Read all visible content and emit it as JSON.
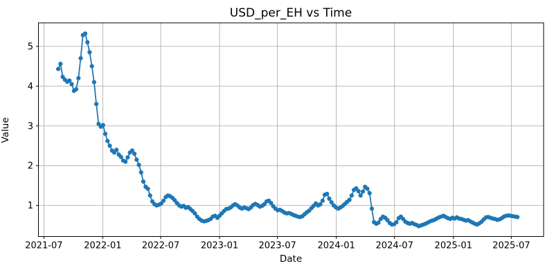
{
  "chart_data": {
    "type": "line",
    "title": "USD_per_EH vs Time",
    "xlabel": "Date",
    "ylabel": "Value",
    "legend": null,
    "grid": true,
    "line_color": "#1f77b4",
    "grid_color": "#b0b0b0",
    "marker": "circle",
    "xlim": [
      "2021-06-14",
      "2025-10-10"
    ],
    "ylim": [
      0.22,
      5.59
    ],
    "x_ticks": [
      {
        "date": "2021-07-01",
        "label": "2021-07"
      },
      {
        "date": "2022-01-01",
        "label": "2022-01"
      },
      {
        "date": "2022-07-01",
        "label": "2022-07"
      },
      {
        "date": "2023-01-01",
        "label": "2023-01"
      },
      {
        "date": "2023-07-01",
        "label": "2023-07"
      },
      {
        "date": "2024-01-01",
        "label": "2024-01"
      },
      {
        "date": "2024-07-01",
        "label": "2024-07"
      },
      {
        "date": "2025-01-01",
        "label": "2025-01"
      },
      {
        "date": "2025-07-01",
        "label": "2025-07"
      }
    ],
    "y_ticks": [
      1,
      2,
      3,
      4,
      5
    ],
    "series": [
      {
        "name": "USD_per_EH",
        "points": [
          [
            "2021-08-15",
            4.43
          ],
          [
            "2021-08-22",
            4.56
          ],
          [
            "2021-08-29",
            4.23
          ],
          [
            "2021-09-05",
            4.16
          ],
          [
            "2021-09-12",
            4.11
          ],
          [
            "2021-09-19",
            4.14
          ],
          [
            "2021-09-26",
            4.05
          ],
          [
            "2021-10-03",
            3.88
          ],
          [
            "2021-10-10",
            3.92
          ],
          [
            "2021-10-17",
            4.2
          ],
          [
            "2021-10-24",
            4.7
          ],
          [
            "2021-10-31",
            5.28
          ],
          [
            "2021-11-07",
            5.32
          ],
          [
            "2021-11-14",
            5.1
          ],
          [
            "2021-11-21",
            4.85
          ],
          [
            "2021-11-28",
            4.5
          ],
          [
            "2021-12-05",
            4.1
          ],
          [
            "2021-12-12",
            3.55
          ],
          [
            "2021-12-19",
            3.05
          ],
          [
            "2021-12-26",
            2.98
          ],
          [
            "2022-01-02",
            3.02
          ],
          [
            "2022-01-09",
            2.8
          ],
          [
            "2022-01-16",
            2.62
          ],
          [
            "2022-01-23",
            2.5
          ],
          [
            "2022-01-30",
            2.38
          ],
          [
            "2022-02-06",
            2.33
          ],
          [
            "2022-02-13",
            2.4
          ],
          [
            "2022-02-20",
            2.28
          ],
          [
            "2022-02-27",
            2.22
          ],
          [
            "2022-03-06",
            2.13
          ],
          [
            "2022-03-13",
            2.1
          ],
          [
            "2022-03-20",
            2.21
          ],
          [
            "2022-03-27",
            2.33
          ],
          [
            "2022-04-03",
            2.38
          ],
          [
            "2022-04-10",
            2.3
          ],
          [
            "2022-04-17",
            2.15
          ],
          [
            "2022-04-24",
            2.02
          ],
          [
            "2022-05-01",
            1.83
          ],
          [
            "2022-05-08",
            1.6
          ],
          [
            "2022-05-15",
            1.47
          ],
          [
            "2022-05-22",
            1.42
          ],
          [
            "2022-05-29",
            1.25
          ],
          [
            "2022-06-05",
            1.1
          ],
          [
            "2022-06-12",
            1.03
          ],
          [
            "2022-06-19",
            1.0
          ],
          [
            "2022-06-26",
            1.02
          ],
          [
            "2022-07-03",
            1.05
          ],
          [
            "2022-07-10",
            1.12
          ],
          [
            "2022-07-17",
            1.21
          ],
          [
            "2022-07-24",
            1.25
          ],
          [
            "2022-07-31",
            1.23
          ],
          [
            "2022-08-07",
            1.19
          ],
          [
            "2022-08-14",
            1.13
          ],
          [
            "2022-08-21",
            1.06
          ],
          [
            "2022-08-28",
            1.0
          ],
          [
            "2022-09-04",
            0.97
          ],
          [
            "2022-09-11",
            0.99
          ],
          [
            "2022-09-18",
            0.94
          ],
          [
            "2022-09-25",
            0.96
          ],
          [
            "2022-10-02",
            0.91
          ],
          [
            "2022-10-09",
            0.86
          ],
          [
            "2022-10-16",
            0.8
          ],
          [
            "2022-10-23",
            0.72
          ],
          [
            "2022-10-30",
            0.66
          ],
          [
            "2022-11-06",
            0.62
          ],
          [
            "2022-11-13",
            0.6
          ],
          [
            "2022-11-20",
            0.61
          ],
          [
            "2022-11-27",
            0.63
          ],
          [
            "2022-12-04",
            0.66
          ],
          [
            "2022-12-11",
            0.72
          ],
          [
            "2022-12-18",
            0.74
          ],
          [
            "2022-12-25",
            0.69
          ],
          [
            "2023-01-01",
            0.74
          ],
          [
            "2023-01-08",
            0.8
          ],
          [
            "2023-01-15",
            0.86
          ],
          [
            "2023-01-22",
            0.91
          ],
          [
            "2023-01-29",
            0.92
          ],
          [
            "2023-02-05",
            0.95
          ],
          [
            "2023-02-12",
            1.0
          ],
          [
            "2023-02-19",
            1.03
          ],
          [
            "2023-02-26",
            1.0
          ],
          [
            "2023-03-05",
            0.95
          ],
          [
            "2023-03-12",
            0.92
          ],
          [
            "2023-03-19",
            0.95
          ],
          [
            "2023-03-26",
            0.93
          ],
          [
            "2023-04-02",
            0.91
          ],
          [
            "2023-04-09",
            0.95
          ],
          [
            "2023-04-16",
            1.01
          ],
          [
            "2023-04-23",
            1.04
          ],
          [
            "2023-04-30",
            1.01
          ],
          [
            "2023-05-07",
            0.97
          ],
          [
            "2023-05-14",
            0.99
          ],
          [
            "2023-05-21",
            1.03
          ],
          [
            "2023-05-28",
            1.1
          ],
          [
            "2023-06-04",
            1.12
          ],
          [
            "2023-06-11",
            1.06
          ],
          [
            "2023-06-18",
            0.98
          ],
          [
            "2023-06-25",
            0.92
          ],
          [
            "2023-07-02",
            0.88
          ],
          [
            "2023-07-09",
            0.89
          ],
          [
            "2023-07-16",
            0.86
          ],
          [
            "2023-07-23",
            0.82
          ],
          [
            "2023-07-30",
            0.8
          ],
          [
            "2023-08-06",
            0.81
          ],
          [
            "2023-08-13",
            0.79
          ],
          [
            "2023-08-20",
            0.76
          ],
          [
            "2023-08-27",
            0.74
          ],
          [
            "2023-09-03",
            0.72
          ],
          [
            "2023-09-10",
            0.71
          ],
          [
            "2023-09-17",
            0.73
          ],
          [
            "2023-09-24",
            0.78
          ],
          [
            "2023-10-01",
            0.83
          ],
          [
            "2023-10-08",
            0.87
          ],
          [
            "2023-10-15",
            0.93
          ],
          [
            "2023-10-22",
            0.99
          ],
          [
            "2023-10-29",
            1.05
          ],
          [
            "2023-11-05",
            1.0
          ],
          [
            "2023-11-12",
            1.03
          ],
          [
            "2023-11-19",
            1.12
          ],
          [
            "2023-11-26",
            1.27
          ],
          [
            "2023-12-03",
            1.29
          ],
          [
            "2023-12-10",
            1.17
          ],
          [
            "2023-12-17",
            1.08
          ],
          [
            "2023-12-24",
            1.0
          ],
          [
            "2023-12-31",
            0.95
          ],
          [
            "2024-01-07",
            0.92
          ],
          [
            "2024-01-14",
            0.95
          ],
          [
            "2024-01-21",
            0.99
          ],
          [
            "2024-01-28",
            1.04
          ],
          [
            "2024-02-04",
            1.09
          ],
          [
            "2024-02-11",
            1.14
          ],
          [
            "2024-02-18",
            1.25
          ],
          [
            "2024-02-25",
            1.39
          ],
          [
            "2024-03-03",
            1.43
          ],
          [
            "2024-03-10",
            1.36
          ],
          [
            "2024-03-17",
            1.25
          ],
          [
            "2024-03-24",
            1.35
          ],
          [
            "2024-03-31",
            1.47
          ],
          [
            "2024-04-07",
            1.42
          ],
          [
            "2024-04-14",
            1.31
          ],
          [
            "2024-04-21",
            0.92
          ],
          [
            "2024-04-28",
            0.58
          ],
          [
            "2024-05-05",
            0.54
          ],
          [
            "2024-05-12",
            0.57
          ],
          [
            "2024-05-19",
            0.66
          ],
          [
            "2024-05-26",
            0.72
          ],
          [
            "2024-06-02",
            0.69
          ],
          [
            "2024-06-09",
            0.63
          ],
          [
            "2024-06-16",
            0.56
          ],
          [
            "2024-06-23",
            0.52
          ],
          [
            "2024-06-30",
            0.53
          ],
          [
            "2024-07-07",
            0.58
          ],
          [
            "2024-07-14",
            0.68
          ],
          [
            "2024-07-21",
            0.72
          ],
          [
            "2024-07-28",
            0.66
          ],
          [
            "2024-08-04",
            0.59
          ],
          [
            "2024-08-11",
            0.56
          ],
          [
            "2024-08-18",
            0.54
          ],
          [
            "2024-08-25",
            0.56
          ],
          [
            "2024-09-01",
            0.53
          ],
          [
            "2024-09-08",
            0.51
          ],
          [
            "2024-09-15",
            0.48
          ],
          [
            "2024-09-22",
            0.5
          ],
          [
            "2024-09-29",
            0.52
          ],
          [
            "2024-10-06",
            0.54
          ],
          [
            "2024-10-13",
            0.57
          ],
          [
            "2024-10-20",
            0.6
          ],
          [
            "2024-10-27",
            0.62
          ],
          [
            "2024-11-03",
            0.64
          ],
          [
            "2024-11-10",
            0.67
          ],
          [
            "2024-11-17",
            0.7
          ],
          [
            "2024-11-24",
            0.72
          ],
          [
            "2024-12-01",
            0.74
          ],
          [
            "2024-12-08",
            0.71
          ],
          [
            "2024-12-15",
            0.68
          ],
          [
            "2024-12-22",
            0.66
          ],
          [
            "2024-12-29",
            0.69
          ],
          [
            "2025-01-05",
            0.67
          ],
          [
            "2025-01-12",
            0.7
          ],
          [
            "2025-01-19",
            0.67
          ],
          [
            "2025-01-26",
            0.66
          ],
          [
            "2025-02-02",
            0.64
          ],
          [
            "2025-02-09",
            0.62
          ],
          [
            "2025-02-16",
            0.63
          ],
          [
            "2025-02-23",
            0.6
          ],
          [
            "2025-03-02",
            0.57
          ],
          [
            "2025-03-09",
            0.54
          ],
          [
            "2025-03-16",
            0.52
          ],
          [
            "2025-03-23",
            0.55
          ],
          [
            "2025-03-30",
            0.59
          ],
          [
            "2025-04-06",
            0.65
          ],
          [
            "2025-04-13",
            0.7
          ],
          [
            "2025-04-20",
            0.71
          ],
          [
            "2025-04-27",
            0.69
          ],
          [
            "2025-05-04",
            0.67
          ],
          [
            "2025-05-11",
            0.66
          ],
          [
            "2025-05-18",
            0.64
          ],
          [
            "2025-05-25",
            0.65
          ],
          [
            "2025-06-01",
            0.68
          ],
          [
            "2025-06-08",
            0.72
          ],
          [
            "2025-06-15",
            0.74
          ],
          [
            "2025-06-22",
            0.75
          ],
          [
            "2025-06-29",
            0.74
          ],
          [
            "2025-07-06",
            0.73
          ],
          [
            "2025-07-13",
            0.72
          ],
          [
            "2025-07-20",
            0.71
          ]
        ]
      }
    ]
  }
}
